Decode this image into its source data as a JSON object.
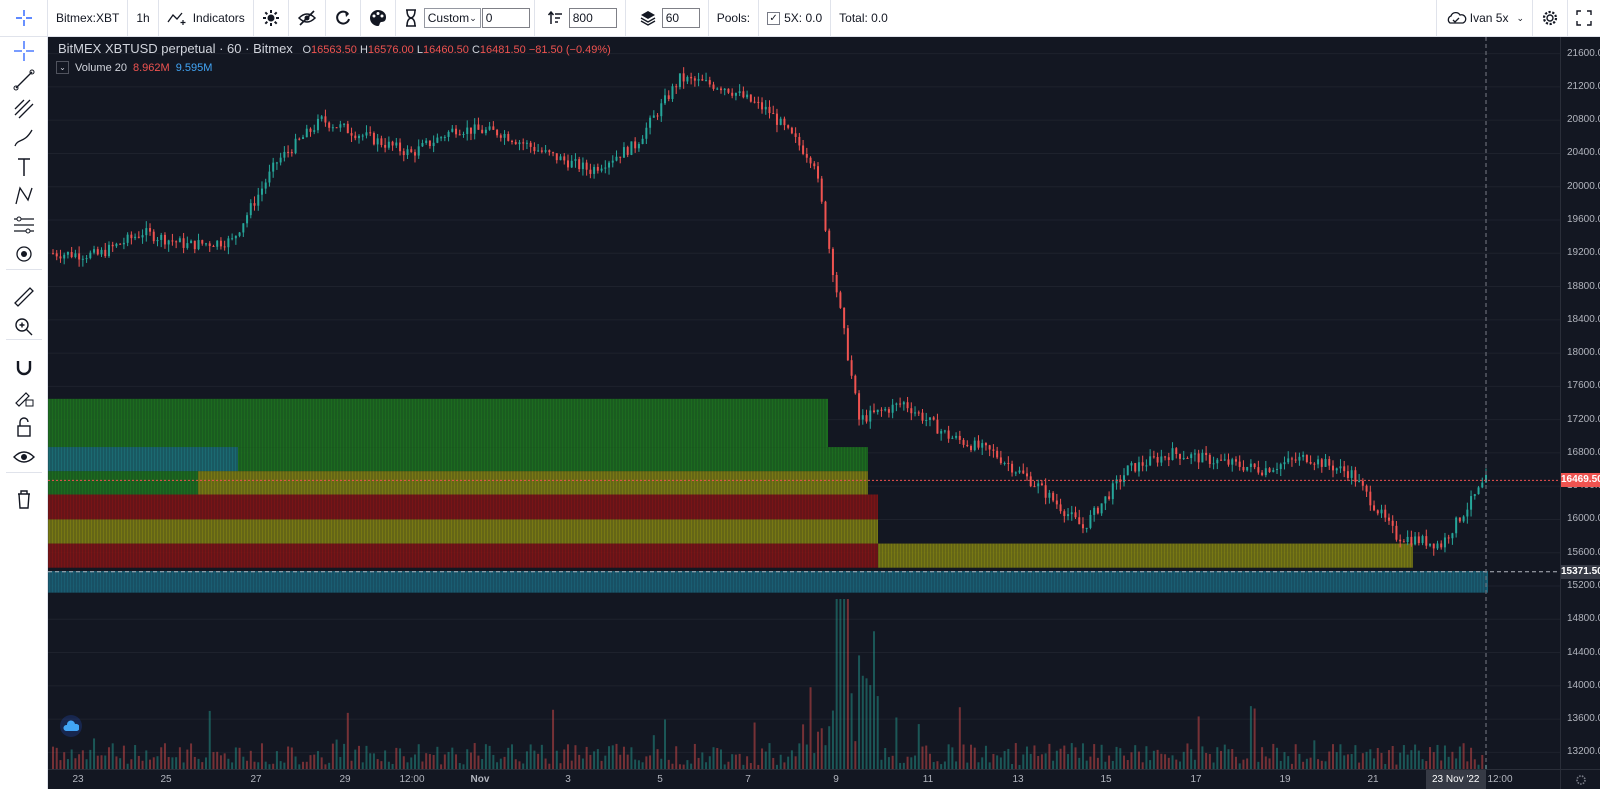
{
  "toolbar": {
    "symbol": "Bitmex:XBT",
    "interval": "1h",
    "indicators_label": "Indicators",
    "range_select": "Custom",
    "range_input": "0",
    "sort_input": "800",
    "layers_input": "60",
    "pools_label": "Pools:",
    "checkbox_label": "5X: 0.0",
    "total_label": "Total: 0.0",
    "user_label": "Ivan 5x"
  },
  "legend": {
    "title": "BitMEX XBTUSD perpetual · 60 · Bitmex",
    "o_label": "O",
    "o_value": "16563.50",
    "h_label": "H",
    "h_value": "16576.00",
    "l_label": "L",
    "l_value": "16460.50",
    "c_label": "C",
    "c_value": "16481.50",
    "change": "−81.50 (−0.49%)"
  },
  "volume_legend": {
    "name": "Volume 20",
    "value1": "8.962M",
    "value2": "9.595M"
  },
  "price_axis": {
    "ticks": [
      "21600.00",
      "21200.00",
      "20800.00",
      "20400.00",
      "20000.00",
      "19600.00",
      "19200.00",
      "18800.00",
      "18400.00",
      "18000.00",
      "17600.00",
      "17200.00",
      "16800.00",
      "16400.00",
      "16000.00",
      "15600.00",
      "15200.00",
      "14800.00",
      "14400.00",
      "14000.00",
      "13600.00",
      "13200.00"
    ],
    "last_price_label": "16469.50",
    "line_price_label": "15371.50"
  },
  "time_axis": {
    "labels": [
      "23",
      "25",
      "27",
      "29",
      "12:00",
      "Nov",
      "3",
      "5",
      "7",
      "9",
      "11",
      "13",
      "15",
      "17",
      "19",
      "21",
      "12:00"
    ],
    "crosshair_date": "23 Nov '22"
  },
  "colors": {
    "background": "#131722",
    "up": "#26a69a",
    "down": "#ef5350",
    "profile_green": "#1e7a1e",
    "profile_olive": "#8a8a10",
    "profile_red": "#8b1414",
    "profile_teal": "#1b6a80"
  },
  "sidebar": {
    "tools": [
      "crosshair-icon",
      "trend-line-icon",
      "fib-icon",
      "brush-icon",
      "text-icon",
      "pattern-icon",
      "prediction-icon",
      "target-icon",
      "ruler-icon",
      "zoom-icon",
      "magnet-icon",
      "lock-draw-icon",
      "lock-icon",
      "eye-icon",
      "trash-icon"
    ]
  },
  "chart_data": {
    "type": "candlestick",
    "symbol": "BitMEX XBTUSD perpetual",
    "interval": "60",
    "x": [
      "Oct 22",
      "Oct 23",
      "Oct 24",
      "Oct 25",
      "Oct 26",
      "Oct 27",
      "Oct 28",
      "Oct 29",
      "Oct 30",
      "Oct 31",
      "Nov 1",
      "Nov 2",
      "Nov 3",
      "Nov 4",
      "Nov 5",
      "Nov 6",
      "Nov 7",
      "Nov 8",
      "Nov 9",
      "Nov 10",
      "Nov 11",
      "Nov 12",
      "Nov 13",
      "Nov 14",
      "Nov 15",
      "Nov 16",
      "Nov 17",
      "Nov 18",
      "Nov 19",
      "Nov 20",
      "Nov 21",
      "Nov 22",
      "Nov 23"
    ],
    "close": [
      19200,
      19180,
      19450,
      19300,
      19350,
      20300,
      20800,
      20600,
      20400,
      20700,
      20650,
      20400,
      20200,
      20500,
      21300,
      21200,
      20900,
      20300,
      17200,
      17400,
      17000,
      16800,
      16400,
      15900,
      16600,
      16800,
      16700,
      16600,
      16750,
      16550,
      15800,
      15700,
      16469.5
    ],
    "ylim": [
      13000,
      21800
    ],
    "volume_legend": "Volume 20",
    "last_price": 16469.5,
    "horizontal_line": 15371.5
  }
}
